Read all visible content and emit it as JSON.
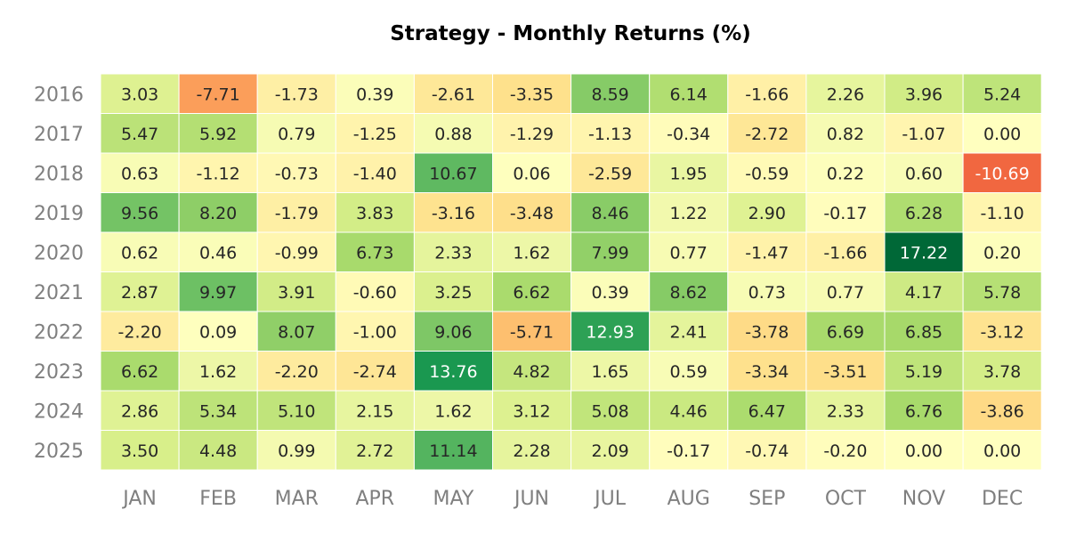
{
  "chart_data": {
    "type": "heatmap",
    "title": "Strategy - Monthly Returns (%)",
    "xlabel": "",
    "ylabel": "",
    "months": [
      "JAN",
      "FEB",
      "MAR",
      "APR",
      "MAY",
      "JUN",
      "JUL",
      "AUG",
      "SEP",
      "OCT",
      "NOV",
      "DEC"
    ],
    "years": [
      "2016",
      "2017",
      "2018",
      "2019",
      "2020",
      "2021",
      "2022",
      "2023",
      "2024",
      "2025"
    ],
    "values": [
      [
        "3.03",
        "-7.71",
        "-1.73",
        "0.39",
        "-2.61",
        "-3.35",
        "8.59",
        "6.14",
        "-1.66",
        "2.26",
        "3.96",
        "5.24"
      ],
      [
        "5.47",
        "5.92",
        "0.79",
        "-1.25",
        "0.88",
        "-1.29",
        "-1.13",
        "-0.34",
        "-2.72",
        "0.82",
        "-1.07",
        "0.00"
      ],
      [
        "0.63",
        "-1.12",
        "-0.73",
        "-1.40",
        "10.67",
        "0.06",
        "-2.59",
        "1.95",
        "-0.59",
        "0.22",
        "0.60",
        "-10.69"
      ],
      [
        "9.56",
        "8.20",
        "-1.79",
        "3.83",
        "-3.16",
        "-3.48",
        "8.46",
        "1.22",
        "2.90",
        "-0.17",
        "6.28",
        "-1.10"
      ],
      [
        "0.62",
        "0.46",
        "-0.99",
        "6.73",
        "2.33",
        "1.62",
        "7.99",
        "0.77",
        "-1.47",
        "-1.66",
        "17.22",
        "0.20"
      ],
      [
        "2.87",
        "9.97",
        "3.91",
        "-0.60",
        "3.25",
        "6.62",
        "0.39",
        "8.62",
        "0.73",
        "0.77",
        "4.17",
        "5.78"
      ],
      [
        "-2.20",
        "0.09",
        "8.07",
        "-1.00",
        "9.06",
        "-5.71",
        "12.93",
        "2.41",
        "-3.78",
        "6.69",
        "6.85",
        "-3.12"
      ],
      [
        "6.62",
        "1.62",
        "-2.20",
        "-2.74",
        "13.76",
        "4.82",
        "1.65",
        "0.59",
        "-3.34",
        "-3.51",
        "5.19",
        "3.78"
      ],
      [
        "2.86",
        "5.34",
        "5.10",
        "2.15",
        "1.62",
        "3.12",
        "5.08",
        "4.46",
        "6.47",
        "2.33",
        "6.76",
        "-3.86"
      ],
      [
        "3.50",
        "4.48",
        "0.99",
        "2.72",
        "11.14",
        "2.28",
        "2.09",
        "-0.17",
        "-0.74",
        "-0.20",
        "0.00",
        "0.00"
      ]
    ],
    "colormap": "RdYlGn",
    "color_center": 0,
    "color_range": [
      -17.22,
      17.22
    ],
    "legend": "none",
    "grid": false
  }
}
